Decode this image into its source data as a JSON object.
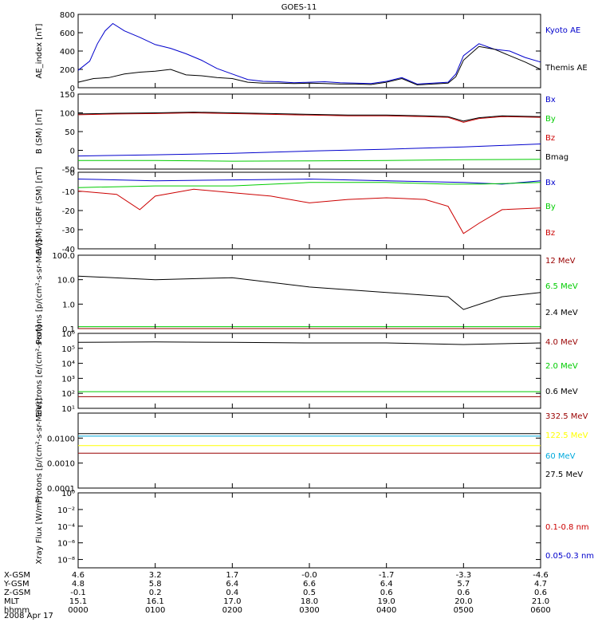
{
  "title": "GOES-11",
  "date_label": "2008 Apr 17",
  "chart_data": [
    {
      "type": "line",
      "ylabel": "AE_index [nT]",
      "ylim": [
        0,
        800
      ],
      "yticks": [
        "0",
        "200",
        "400",
        "600",
        "800"
      ],
      "series": [
        {
          "name": "Kyoto AE",
          "color": "#0000cc",
          "x": [
            0,
            0.15,
            0.25,
            0.35,
            0.45,
            0.6,
            0.8,
            1.0,
            1.2,
            1.4,
            1.6,
            1.8,
            2.0,
            2.2,
            2.4,
            2.6,
            2.8,
            3.0,
            3.2,
            3.4,
            3.6,
            3.8,
            4.0,
            4.2,
            4.4,
            4.6,
            4.8,
            4.9,
            5.0,
            5.2,
            5.4,
            5.6,
            5.8,
            6.0
          ],
          "y": [
            190,
            290,
            480,
            620,
            700,
            620,
            550,
            470,
            430,
            370,
            300,
            210,
            150,
            90,
            70,
            65,
            55,
            60,
            65,
            55,
            50,
            45,
            70,
            110,
            40,
            50,
            60,
            150,
            350,
            480,
            420,
            400,
            330,
            280
          ]
        },
        {
          "name": "Themis AE",
          "color": "#000000",
          "x": [
            0,
            0.2,
            0.4,
            0.6,
            0.8,
            1.0,
            1.2,
            1.4,
            1.6,
            1.8,
            2.0,
            2.2,
            2.4,
            2.6,
            2.8,
            3.0,
            3.2,
            3.4,
            3.6,
            3.8,
            4.0,
            4.2,
            4.4,
            4.6,
            4.8,
            4.9,
            5.0,
            5.2,
            5.4,
            5.6,
            5.8,
            6.0
          ],
          "y": [
            60,
            100,
            110,
            150,
            170,
            180,
            200,
            140,
            130,
            110,
            100,
            60,
            50,
            50,
            45,
            50,
            45,
            40,
            40,
            35,
            60,
            100,
            30,
            40,
            50,
            120,
            300,
            450,
            420,
            350,
            280,
            200
          ]
        }
      ]
    },
    {
      "type": "line",
      "ylabel": "B (SM) [nT]",
      "ylim": [
        -50,
        150
      ],
      "yticks": [
        "-50",
        "0",
        "50",
        "100",
        "150"
      ],
      "series": [
        {
          "name": "Bx",
          "color": "#0000cc",
          "x": [
            0,
            1,
            2,
            3,
            4,
            5,
            5.5,
            6
          ],
          "y": [
            -15,
            -12,
            -8,
            -2,
            3,
            9,
            13,
            17
          ]
        },
        {
          "name": "By",
          "color": "#00cc00",
          "x": [
            0,
            1,
            2,
            3,
            4,
            5,
            6
          ],
          "y": [
            -27,
            -27,
            -29,
            -28,
            -27,
            -25,
            -24
          ]
        },
        {
          "name": "Bz",
          "color": "#cc0000",
          "x": [
            0,
            0.5,
            1,
            1.5,
            2,
            2.5,
            3,
            3.5,
            4,
            4.5,
            4.8,
            5.0,
            5.2,
            5.5,
            6
          ],
          "y": [
            95,
            97,
            98,
            100,
            98,
            96,
            94,
            92,
            92,
            90,
            88,
            75,
            85,
            90,
            88
          ]
        },
        {
          "name": "Bmag",
          "color": "#000000",
          "x": [
            0,
            0.5,
            1,
            1.5,
            2,
            2.5,
            3,
            3.5,
            4,
            4.5,
            4.8,
            5.0,
            5.2,
            5.5,
            6
          ],
          "y": [
            97,
            99,
            100,
            102,
            100,
            98,
            96,
            94,
            94,
            92,
            90,
            78,
            87,
            92,
            90
          ]
        }
      ]
    },
    {
      "type": "line",
      "ylabel": "B (SM)-IGRF (SM) [nT]",
      "ylim": [
        -40,
        5
      ],
      "yticks": [
        "-40",
        "-30",
        "-20",
        "-10",
        "0"
      ],
      "series": [
        {
          "name": "Bx",
          "color": "#0000cc",
          "x": [
            0,
            1,
            2,
            3,
            4,
            5,
            5.5,
            6
          ],
          "y": [
            1,
            0,
            0.5,
            1,
            0,
            -1,
            -2,
            0
          ]
        },
        {
          "name": "By",
          "color": "#00cc00",
          "x": [
            0,
            1,
            2,
            3,
            4,
            4.8,
            5.2,
            6
          ],
          "y": [
            -4,
            -3,
            -3,
            -1,
            -1,
            -2,
            -2,
            -1
          ]
        },
        {
          "name": "Bz",
          "color": "#cc0000",
          "x": [
            0,
            0.5,
            0.8,
            1.0,
            1.5,
            2,
            2.5,
            3,
            3.5,
            4,
            4.5,
            4.8,
            5.0,
            5.2,
            5.5,
            6
          ],
          "y": [
            -6,
            -8,
            -17,
            -9,
            -5,
            -7,
            -9,
            -13,
            -11,
            -10,
            -11,
            -15,
            -31,
            -25,
            -17,
            -16
          ]
        }
      ]
    },
    {
      "type": "line",
      "ylabel": "Protons [p/(cm²-s-sr-MeV)]",
      "log_scale": true,
      "ylim": [
        0.1,
        100
      ],
      "yticks": [
        "0.1",
        "1.0",
        "10.0",
        "100.0"
      ],
      "series": [
        {
          "name": "12 MeV",
          "color": "#990000",
          "x": [
            0,
            6
          ],
          "y": [
            0.1,
            0.1
          ]
        },
        {
          "name": "6.5 MeV",
          "color": "#00cc00",
          "x": [
            0,
            6
          ],
          "y": [
            0.12,
            0.12
          ]
        },
        {
          "name": "2.4 MeV",
          "color": "#000000",
          "x": [
            0,
            1,
            2,
            3,
            4,
            4.8,
            5.0,
            5.5,
            6
          ],
          "y": [
            14,
            10,
            12,
            5,
            3,
            2,
            0.6,
            2,
            3
          ]
        }
      ]
    },
    {
      "type": "line",
      "ylabel": "Electrons [e/(cm²-s-sr)]",
      "log_scale": true,
      "ylim": [
        10,
        1000000
      ],
      "yticks": [
        "10¹",
        "10²",
        "10³",
        "10⁴",
        "10⁵",
        "10⁶"
      ],
      "series": [
        {
          "name": "4.0 MeV",
          "color": "#990000",
          "x": [
            0,
            6
          ],
          "y": [
            60,
            60
          ]
        },
        {
          "name": "2.0 MeV",
          "color": "#00cc00",
          "x": [
            0,
            6
          ],
          "y": [
            130,
            130
          ]
        },
        {
          "name": "0.6 MeV",
          "color": "#000000",
          "x": [
            0,
            1,
            2,
            3,
            4,
            5,
            6
          ],
          "y": [
            250000,
            270000,
            250000,
            230000,
            230000,
            180000,
            230000
          ]
        }
      ]
    },
    {
      "type": "line",
      "ylabel": "Protons [p/(cm²-s-sr-MeV)]",
      "log_scale": true,
      "ylim": [
        0.0001,
        0.1
      ],
      "yticks": [
        "0.0001",
        "0.0010",
        "0.0100"
      ],
      "series": [
        {
          "name": "332.5 MeV",
          "color": "#990000",
          "x": [
            0,
            6
          ],
          "y": [
            0.0025,
            0.0025
          ]
        },
        {
          "name": "122.5 MeV",
          "color": "#ffff00",
          "x": [
            0,
            6
          ],
          "y": [
            0.005,
            0.005
          ]
        },
        {
          "name": "60 MeV",
          "color": "#00aadd",
          "x": [
            0,
            6
          ],
          "y": [
            0.012,
            0.012
          ]
        },
        {
          "name": "27.5 MeV",
          "color": "#000000",
          "x": [
            0,
            6
          ],
          "y": [
            0.015,
            0.015
          ]
        }
      ]
    },
    {
      "type": "line",
      "ylabel": "Xray Flux [W/m²]",
      "log_scale": true,
      "ylim": [
        1e-09,
        1
      ],
      "yticks": [
        "10⁻⁸",
        "10⁻⁶",
        "10⁻⁴",
        "10⁻²",
        "10⁰"
      ],
      "series": [
        {
          "name": "0.1-0.8 nm",
          "color": "#cc0000",
          "x": [],
          "y": []
        },
        {
          "name": "0.05-0.3 nm",
          "color": "#0000cc",
          "x": [],
          "y": []
        }
      ]
    }
  ],
  "time_axis": {
    "rows": [
      {
        "label": "X-GSM",
        "values": [
          "4.6",
          "3.2",
          "1.7",
          "-0.0",
          "-1.7",
          "-3.3",
          "-4.6"
        ]
      },
      {
        "label": "Y-GSM",
        "values": [
          "4.8",
          "5.8",
          "6.4",
          "6.6",
          "6.4",
          "5.7",
          "4.7"
        ]
      },
      {
        "label": "Z-GSM",
        "values": [
          "-0.1",
          "0.2",
          "0.4",
          "0.5",
          "0.6",
          "0.6",
          "0.6"
        ]
      },
      {
        "label": "MLT",
        "values": [
          "15.1",
          "16.1",
          "17.0",
          "18.0",
          "19.0",
          "20.0",
          "21.0"
        ]
      },
      {
        "label": "hhmm",
        "values": [
          "0000",
          "0100",
          "0200",
          "0300",
          "0400",
          "0500",
          "0600"
        ]
      }
    ]
  }
}
